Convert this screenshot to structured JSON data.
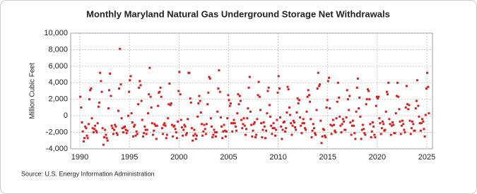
{
  "chart_data": {
    "type": "scatter",
    "title": "Monthly Maryland Natural Gas Underground Storage Net Withdrawals",
    "y_label": "Million Cubic Feet",
    "source": "Source: U.S. Energy Information Administration",
    "color": "#d62020",
    "grid": true,
    "xlim": [
      1989.07,
      2025.57
    ],
    "ylim": [
      -4000,
      10000
    ],
    "xticks": [
      1990,
      1995,
      2000,
      2005,
      2010,
      2015,
      2020,
      2025
    ],
    "yticks": [
      {
        "value": -4000,
        "label": "-4,000"
      },
      {
        "value": -2000,
        "label": "-2,000"
      },
      0,
      {
        "value": 2000,
        "label": "2,000"
      },
      {
        "value": 4000,
        "label": "4,000"
      },
      {
        "value": 6000,
        "label": "6,000"
      },
      {
        "value": 8000,
        "label": "8,000"
      },
      {
        "value": 10000,
        "label": "10,000"
      }
    ],
    "x": [
      1990.04,
      1990.13,
      1990.21,
      1990.29,
      1990.38,
      1990.46,
      1990.54,
      1990.63,
      1990.71,
      1990.79,
      1990.88,
      1990.96,
      1991.04,
      1991.13,
      1991.21,
      1991.29,
      1991.38,
      1991.46,
      1991.54,
      1991.63,
      1991.71,
      1991.79,
      1991.88,
      1991.96,
      1992.04,
      1992.13,
      1992.21,
      1992.29,
      1992.38,
      1992.46,
      1992.54,
      1992.63,
      1992.71,
      1992.79,
      1992.88,
      1992.96,
      1993.04,
      1993.13,
      1993.21,
      1993.29,
      1993.38,
      1993.46,
      1993.54,
      1993.63,
      1993.71,
      1993.79,
      1993.88,
      1993.96,
      1994.04,
      1994.13,
      1994.21,
      1994.29,
      1994.38,
      1994.46,
      1994.54,
      1994.63,
      1994.71,
      1994.79,
      1994.88,
      1994.96,
      1995.04,
      1995.13,
      1995.21,
      1995.29,
      1995.38,
      1995.46,
      1995.54,
      1995.63,
      1995.71,
      1995.79,
      1995.88,
      1995.96,
      1996.04,
      1996.13,
      1996.21,
      1996.29,
      1996.38,
      1996.46,
      1996.54,
      1996.63,
      1996.71,
      1996.79,
      1996.88,
      1996.96,
      1997.04,
      1997.13,
      1997.21,
      1997.29,
      1997.38,
      1997.46,
      1997.54,
      1997.63,
      1997.71,
      1997.79,
      1997.88,
      1997.96,
      1998.04,
      1998.13,
      1998.21,
      1998.29,
      1998.38,
      1998.46,
      1998.54,
      1998.63,
      1998.71,
      1998.79,
      1998.88,
      1998.96,
      1999.04,
      1999.13,
      1999.21,
      1999.29,
      1999.38,
      1999.46,
      1999.54,
      1999.63,
      1999.71,
      1999.79,
      1999.88,
      1999.96,
      2000.04,
      2000.13,
      2000.21,
      2000.29,
      2000.38,
      2000.46,
      2000.54,
      2000.63,
      2000.71,
      2000.79,
      2000.88,
      2000.96,
      2001.04,
      2001.13,
      2001.21,
      2001.29,
      2001.38,
      2001.46,
      2001.54,
      2001.63,
      2001.71,
      2001.79,
      2001.88,
      2001.96,
      2002.04,
      2002.13,
      2002.21,
      2002.29,
      2002.38,
      2002.46,
      2002.54,
      2002.63,
      2002.71,
      2002.79,
      2002.88,
      2002.96,
      2003.04,
      2003.13,
      2003.21,
      2003.29,
      2003.38,
      2003.46,
      2003.54,
      2003.63,
      2003.71,
      2003.79,
      2003.88,
      2003.96,
      2004.04,
      2004.13,
      2004.21,
      2004.29,
      2004.38,
      2004.46,
      2004.54,
      2004.63,
      2004.71,
      2004.79,
      2004.88,
      2004.96,
      2005.04,
      2005.13,
      2005.21,
      2005.29,
      2005.38,
      2005.46,
      2005.54,
      2005.63,
      2005.71,
      2005.79,
      2005.88,
      2005.96,
      2006.04,
      2006.13,
      2006.21,
      2006.29,
      2006.38,
      2006.46,
      2006.54,
      2006.63,
      2006.71,
      2006.79,
      2006.88,
      2006.96,
      2007.04,
      2007.13,
      2007.21,
      2007.29,
      2007.38,
      2007.46,
      2007.54,
      2007.63,
      2007.71,
      2007.79,
      2007.88,
      2007.96,
      2008.04,
      2008.13,
      2008.21,
      2008.29,
      2008.38,
      2008.46,
      2008.54,
      2008.63,
      2008.71,
      2008.79,
      2008.88,
      2008.96,
      2009.04,
      2009.13,
      2009.21,
      2009.29,
      2009.38,
      2009.46,
      2009.54,
      2009.63,
      2009.71,
      2009.79,
      2009.88,
      2009.96,
      2010.04,
      2010.13,
      2010.21,
      2010.29,
      2010.38,
      2010.46,
      2010.54,
      2010.63,
      2010.71,
      2010.79,
      2010.88,
      2010.96,
      2011.04,
      2011.13,
      2011.21,
      2011.29,
      2011.38,
      2011.46,
      2011.54,
      2011.63,
      2011.71,
      2011.79,
      2011.88,
      2011.96,
      2012.04,
      2012.13,
      2012.21,
      2012.29,
      2012.38,
      2012.46,
      2012.54,
      2012.63,
      2012.71,
      2012.79,
      2012.88,
      2012.96,
      2013.04,
      2013.13,
      2013.21,
      2013.29,
      2013.38,
      2013.46,
      2013.54,
      2013.63,
      2013.71,
      2013.79,
      2013.88,
      2013.96,
      2014.04,
      2014.13,
      2014.21,
      2014.29,
      2014.38,
      2014.46,
      2014.54,
      2014.63,
      2014.71,
      2014.79,
      2014.88,
      2014.96,
      2015.04,
      2015.13,
      2015.21,
      2015.29,
      2015.38,
      2015.46,
      2015.54,
      2015.63,
      2015.71,
      2015.79,
      2015.88,
      2015.96,
      2016.04,
      2016.13,
      2016.21,
      2016.29,
      2016.38,
      2016.46,
      2016.54,
      2016.63,
      2016.71,
      2016.79,
      2016.88,
      2016.96,
      2017.04,
      2017.13,
      2017.21,
      2017.29,
      2017.38,
      2017.46,
      2017.54,
      2017.63,
      2017.71,
      2017.79,
      2017.88,
      2017.96,
      2018.04,
      2018.13,
      2018.21,
      2018.29,
      2018.38,
      2018.46,
      2018.54,
      2018.63,
      2018.71,
      2018.79,
      2018.88,
      2018.96,
      2019.04,
      2019.13,
      2019.21,
      2019.29,
      2019.38,
      2019.46,
      2019.54,
      2019.63,
      2019.71,
      2019.79,
      2019.88,
      2019.96,
      2020.04,
      2020.13,
      2020.21,
      2020.29,
      2020.38,
      2020.46,
      2020.54,
      2020.63,
      2020.71,
      2020.79,
      2020.88,
      2020.96,
      2021.04,
      2021.13,
      2021.21,
      2021.29,
      2021.38,
      2021.46,
      2021.54,
      2021.63,
      2021.71,
      2021.79,
      2021.88,
      2021.96,
      2022.04,
      2022.13,
      2022.21,
      2022.29,
      2022.38,
      2022.46,
      2022.54,
      2022.63,
      2022.71,
      2022.79,
      2022.88,
      2022.96,
      2023.04,
      2023.13,
      2023.21,
      2023.29,
      2023.38,
      2023.46,
      2023.54,
      2023.63,
      2023.71,
      2023.79,
      2023.88,
      2023.96,
      2024.04,
      2024.13,
      2024.21,
      2024.29,
      2024.38,
      2024.46,
      2024.54,
      2024.63,
      2024.71,
      2024.79,
      2024.88,
      2024.96,
      2025.04,
      2025.13,
      2025.21
    ],
    "values": [
      2300,
      1000,
      -800,
      -1900,
      -3100,
      -2700,
      -1300,
      -1500,
      -2400,
      -2700,
      -1000,
      2000,
      3100,
      3300,
      -300,
      -1500,
      -2000,
      -1600,
      -1200,
      -1800,
      -2000,
      -900,
      1100,
      1600,
      5200,
      4200,
      2900,
      -1500,
      -3500,
      -2600,
      -1700,
      -2300,
      -2700,
      -3000,
      900,
      3100,
      5100,
      2400,
      -1200,
      -1500,
      -2200,
      -1700,
      -1100,
      -1300,
      -2100,
      -2300,
      600,
      3300,
      8100,
      3800,
      -300,
      -1500,
      -2000,
      -1400,
      -1300,
      -1700,
      -2100,
      -1800,
      0,
      2900,
      4300,
      4800,
      300,
      -800,
      -2500,
      -1300,
      -1100,
      -2400,
      -1900,
      -2200,
      1400,
      3400,
      4200,
      3700,
      1800,
      -500,
      -2500,
      -2100,
      -1300,
      -1700,
      -2200,
      -1700,
      300,
      2600,
      5800,
      2300,
      1000,
      -900,
      -2300,
      -1800,
      -1000,
      -1200,
      -2800,
      -1200,
      1200,
      2800,
      2900,
      3400,
      2300,
      -1500,
      -2200,
      -1100,
      -900,
      -1200,
      -2700,
      -2300,
      -300,
      1400,
      3900,
      1300,
      1500,
      -1100,
      -2500,
      -1300,
      -1200,
      -1600,
      -2000,
      -2700,
      -700,
      3000,
      5300,
      2600,
      -500,
      -1400,
      -2400,
      -1700,
      -1100,
      -1300,
      -2300,
      -2100,
      -400,
      5200,
      5200,
      2100,
      1600,
      -1500,
      -3000,
      -2400,
      -1700,
      -2200,
      -2800,
      -2400,
      -100,
      1500,
      2400,
      1800,
      400,
      -1000,
      -2400,
      -1900,
      -1100,
      -1600,
      -2200,
      -1000,
      1400,
      2800,
      4700,
      4500,
      -300,
      -1300,
      -2600,
      -2300,
      -1700,
      -2000,
      -2500,
      -2000,
      500,
      3300,
      5500,
      2900,
      -200,
      -1300,
      -2700,
      -1900,
      -1100,
      -1800,
      -2500,
      -1900,
      -300,
      2500,
      1900,
      1200,
      1500,
      -900,
      -1900,
      -900,
      -500,
      -900,
      -1300,
      -1800,
      300,
      2600,
      1400,
      2400,
      1800,
      -500,
      -1500,
      -1000,
      -300,
      -1200,
      -2300,
      -1600,
      -300,
      900,
      3400,
      4700,
      500,
      -1100,
      -2500,
      -1800,
      -1000,
      -800,
      -2600,
      -2300,
      -400,
      2500,
      4100,
      2300,
      700,
      -900,
      -2600,
      -1700,
      -800,
      -1300,
      -2700,
      -1800,
      300,
      3000,
      3400,
      1300,
      -100,
      -1200,
      -2200,
      -1500,
      -900,
      -1500,
      -2400,
      -1700,
      -500,
      2800,
      4800,
      3300,
      -200,
      -1300,
      -2800,
      -1700,
      -800,
      -700,
      -1900,
      -1500,
      400,
      3500,
      3200,
      1000,
      100,
      -900,
      -2300,
      -1200,
      -600,
      -800,
      -1400,
      -1700,
      400,
      2100,
      1500,
      1900,
      -200,
      -1200,
      -2100,
      -900,
      -400,
      -900,
      -1500,
      -1700,
      500,
      2300,
      3100,
      2500,
      1700,
      -400,
      -2600,
      -1800,
      -1000,
      -1500,
      -2100,
      -2300,
      700,
      3300,
      5200,
      3600,
      3800,
      -600,
      -3300,
      -2500,
      -1600,
      -1700,
      -2400,
      -2600,
      1000,
      1900,
      4200,
      4600,
      900,
      -1100,
      -2200,
      -1200,
      -500,
      -1100,
      -1800,
      -2000,
      -300,
      1700,
      4000,
      2200,
      -100,
      -1200,
      -2000,
      -1000,
      -400,
      -700,
      -1700,
      -1700,
      -200,
      3100,
      2000,
      700,
      2400,
      -800,
      -2300,
      -1200,
      -600,
      -1200,
      -2100,
      -2800,
      500,
      3400,
      4500,
      900,
      2200,
      -100,
      -2800,
      -1700,
      -1100,
      -1600,
      -2100,
      -2300,
      1400,
      2000,
      3200,
      3000,
      2000,
      -1000,
      -2600,
      -1900,
      -800,
      -1300,
      -2300,
      -2600,
      1200,
      2300,
      2100,
      2300,
      -300,
      -900,
      -2200,
      -1500,
      -700,
      -1000,
      -1800,
      -1700,
      500,
      2900,
      2600,
      4000,
      -400,
      -1000,
      -2300,
      -1200,
      -800,
      -1100,
      -2100,
      -2100,
      300,
      2400,
      4000,
      2300,
      800,
      -700,
      -2200,
      -1200,
      -600,
      -1000,
      -1700,
      -2000,
      1000,
      3600,
      1400,
      800,
      1300,
      -600,
      -2200,
      -1500,
      -700,
      -1000,
      -1800,
      -1800,
      900,
      1800,
      4300,
      1200,
      -100,
      -900,
      -1800,
      -900,
      -400,
      -700,
      -1600,
      -2500,
      100,
      3300,
      5200,
      3500,
      300
    ]
  }
}
